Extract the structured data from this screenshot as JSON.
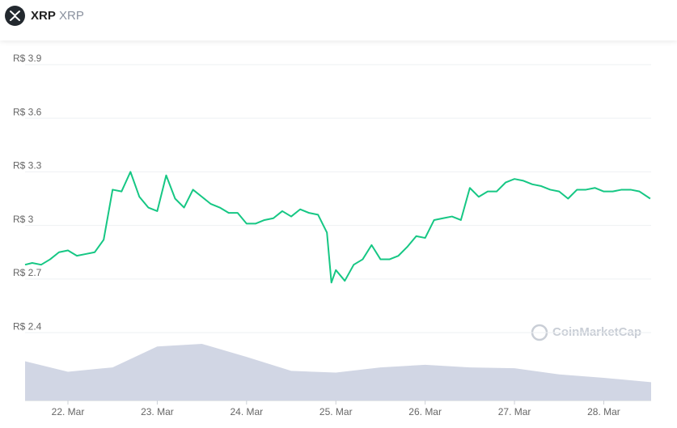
{
  "header": {
    "symbol": "XRP",
    "name": "XRP"
  },
  "chart_data": {
    "type": "line",
    "watermark": "CoinMarketCap",
    "x": [
      21.52,
      21.6,
      21.7,
      21.8,
      21.9,
      22.0,
      22.1,
      22.2,
      22.3,
      22.4,
      22.5,
      22.6,
      22.7,
      22.8,
      22.9,
      23.0,
      23.1,
      23.2,
      23.3,
      23.4,
      23.5,
      23.6,
      23.7,
      23.8,
      23.9,
      24.0,
      24.1,
      24.2,
      24.3,
      24.4,
      24.5,
      24.6,
      24.7,
      24.8,
      24.9,
      24.95,
      25.0,
      25.1,
      25.2,
      25.3,
      25.4,
      25.5,
      25.6,
      25.7,
      25.8,
      25.9,
      26.0,
      26.1,
      26.2,
      26.3,
      26.4,
      26.5,
      26.6,
      26.7,
      26.8,
      26.9,
      27.0,
      27.1,
      27.2,
      27.3,
      27.4,
      27.5,
      27.6,
      27.7,
      27.8,
      27.9,
      28.0,
      28.1,
      28.2,
      28.3,
      28.4,
      28.52
    ],
    "series": [
      {
        "name": "XRP",
        "color": "#16c784",
        "values": [
          2.78,
          2.79,
          2.78,
          2.81,
          2.85,
          2.86,
          2.83,
          2.84,
          2.85,
          2.92,
          3.2,
          3.19,
          3.3,
          3.16,
          3.1,
          3.08,
          3.28,
          3.15,
          3.1,
          3.2,
          3.16,
          3.12,
          3.1,
          3.07,
          3.07,
          3.01,
          3.01,
          3.03,
          3.04,
          3.08,
          3.05,
          3.09,
          3.07,
          3.06,
          2.96,
          2.68,
          2.75,
          2.69,
          2.78,
          2.81,
          2.89,
          2.81,
          2.81,
          2.83,
          2.88,
          2.94,
          2.93,
          3.03,
          3.04,
          3.05,
          3.03,
          3.21,
          3.16,
          3.19,
          3.19,
          3.24,
          3.26,
          3.25,
          3.23,
          3.22,
          3.2,
          3.19,
          3.15,
          3.2,
          3.2,
          3.21,
          3.19,
          3.19,
          3.2,
          3.2,
          3.19,
          3.15
        ]
      }
    ],
    "volume": {
      "color": "#d1d6e4",
      "x": [
        21.52,
        22.0,
        22.5,
        23.0,
        23.5,
        24.0,
        24.5,
        25.0,
        25.5,
        26.0,
        26.5,
        27.0,
        27.5,
        28.0,
        28.53
      ],
      "values": [
        45,
        33,
        38,
        62,
        65,
        50,
        34,
        32,
        38,
        41,
        38,
        37,
        30,
        26,
        21
      ]
    },
    "xlim": [
      21.52,
      28.53
    ],
    "xticks": [
      {
        "value": 22,
        "label": "22. Mar"
      },
      {
        "value": 23,
        "label": "23. Mar"
      },
      {
        "value": 24,
        "label": "24. Mar"
      },
      {
        "value": 25,
        "label": "25. Mar"
      },
      {
        "value": 26,
        "label": "26. Mar"
      },
      {
        "value": 27,
        "label": "27. Mar"
      },
      {
        "value": 28,
        "label": "28. Mar"
      }
    ],
    "ylim": [
      2.02,
      3.99
    ],
    "yticks": [
      {
        "value": 2.4,
        "label": "R$ 2.4"
      },
      {
        "value": 2.7,
        "label": "R$ 2.7"
      },
      {
        "value": 3,
        "label": "R$ 3"
      },
      {
        "value": 3.3,
        "label": "R$ 3.3"
      },
      {
        "value": 3.6,
        "label": "R$ 3.6"
      },
      {
        "value": 3.9,
        "label": "R$ 3.9"
      }
    ],
    "grid": true
  }
}
